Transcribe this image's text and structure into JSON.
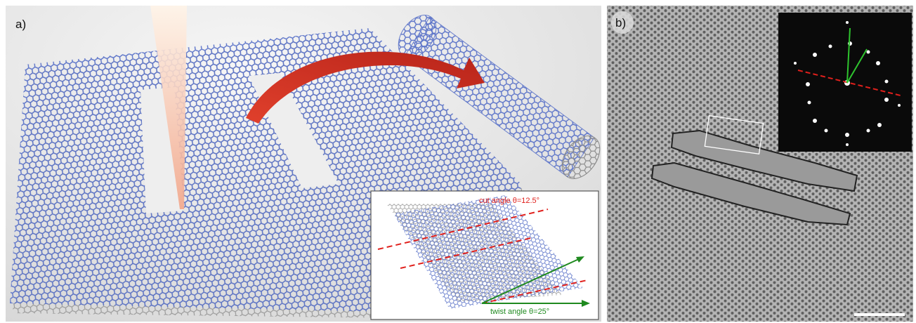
{
  "panels": [
    {
      "label": "a)",
      "inset": {
        "cut_label": "cut angle θ=12.5°",
        "twist_label": "twist angle θ=25°"
      }
    },
    {
      "label": "b)"
    }
  ]
}
